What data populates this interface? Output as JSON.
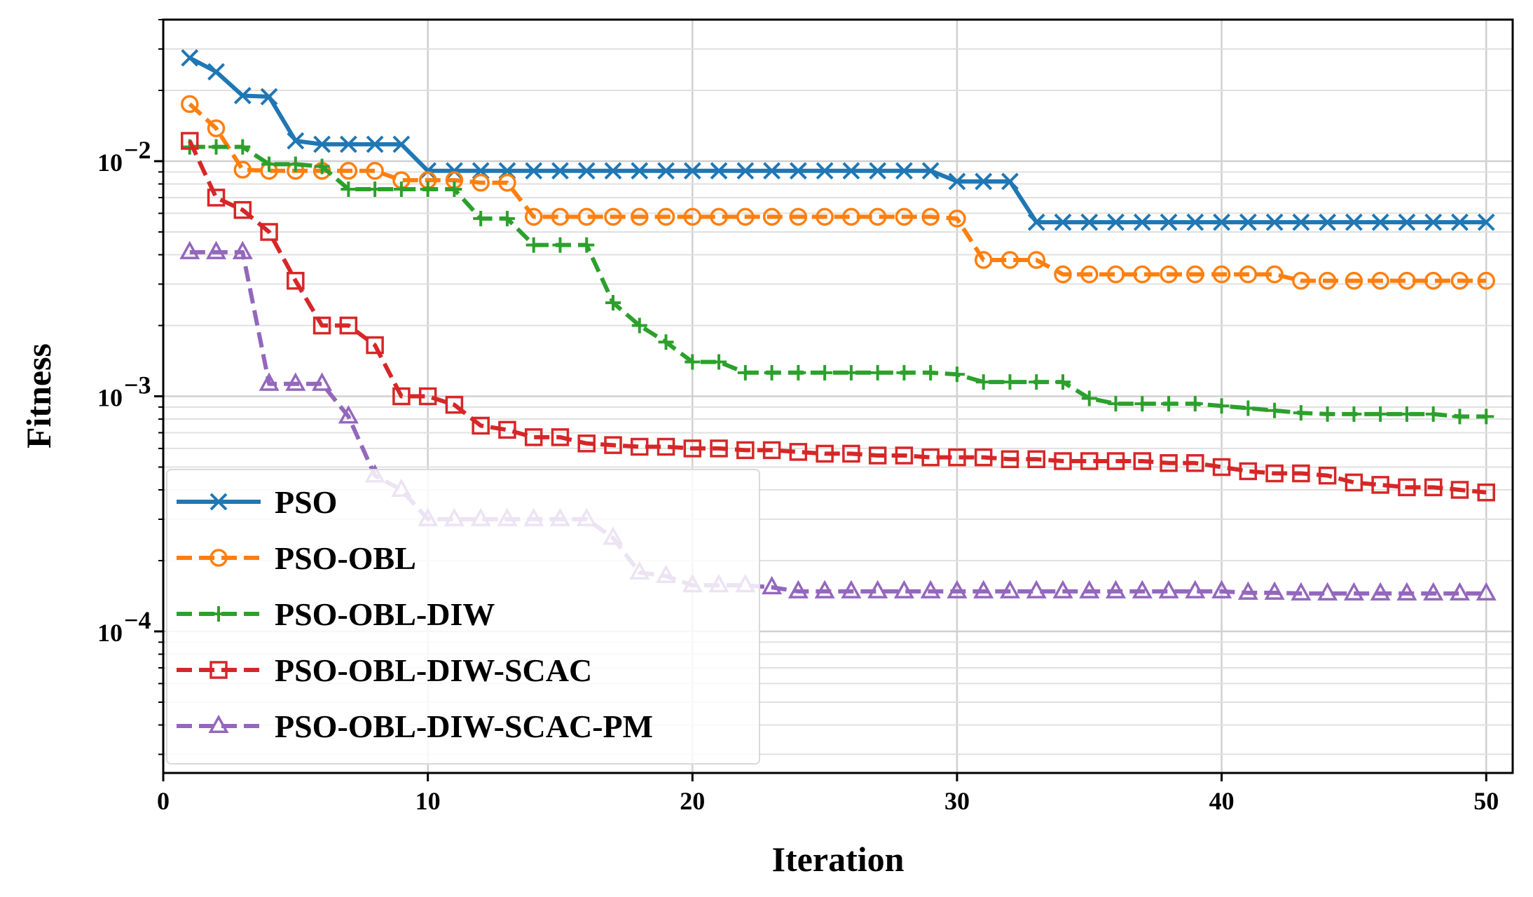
{
  "chart_data": {
    "type": "line",
    "xlabel": "Iteration",
    "ylabel": "Fitness",
    "xlim": [
      0,
      51
    ],
    "ylim": [
      2.5e-05,
      0.04
    ],
    "yscale": "log",
    "xticks": [
      0,
      10,
      20,
      30,
      40,
      50
    ],
    "yticks": [
      {
        "value": 0.01,
        "base": "10",
        "exp": "−2"
      },
      {
        "value": 0.001,
        "base": "10",
        "exp": "−3"
      },
      {
        "value": 0.0001,
        "base": "10",
        "exp": "−4"
      }
    ],
    "grid": true,
    "legend_position": "bottom-left",
    "x": [
      1,
      2,
      3,
      4,
      5,
      6,
      7,
      8,
      9,
      10,
      11,
      12,
      13,
      14,
      15,
      16,
      17,
      18,
      19,
      20,
      21,
      22,
      23,
      24,
      25,
      26,
      27,
      28,
      29,
      30,
      31,
      32,
      33,
      34,
      35,
      36,
      37,
      38,
      39,
      40,
      41,
      42,
      43,
      44,
      45,
      46,
      47,
      48,
      49,
      50
    ],
    "series": [
      {
        "name": "PSO",
        "color": "#1f77b4",
        "marker": "x",
        "dash": "solid",
        "values": [
          0.0275,
          0.024,
          0.019,
          0.0188,
          0.0122,
          0.0118,
          0.0118,
          0.0118,
          0.0118,
          0.0091,
          0.0091,
          0.0091,
          0.0091,
          0.0091,
          0.0091,
          0.0091,
          0.0091,
          0.0091,
          0.0091,
          0.0091,
          0.0091,
          0.0091,
          0.0091,
          0.0091,
          0.0091,
          0.0091,
          0.0091,
          0.0091,
          0.0091,
          0.0082,
          0.0082,
          0.0082,
          0.0055,
          0.0055,
          0.0055,
          0.0055,
          0.0055,
          0.0055,
          0.0055,
          0.0055,
          0.0055,
          0.0055,
          0.0055,
          0.0055,
          0.0055,
          0.0055,
          0.0055,
          0.0055,
          0.0055,
          0.0055
        ]
      },
      {
        "name": "PSO-OBL",
        "color": "#ff7f0e",
        "marker": "o",
        "dash": "dashed",
        "values": [
          0.0175,
          0.0138,
          0.0092,
          0.0091,
          0.0091,
          0.0091,
          0.0091,
          0.0091,
          0.0083,
          0.0083,
          0.0083,
          0.0081,
          0.0081,
          0.0058,
          0.0058,
          0.0058,
          0.0058,
          0.0058,
          0.0058,
          0.0058,
          0.0058,
          0.0058,
          0.0058,
          0.0058,
          0.0058,
          0.0058,
          0.0058,
          0.0058,
          0.0058,
          0.0057,
          0.0038,
          0.0038,
          0.0038,
          0.0033,
          0.0033,
          0.0033,
          0.0033,
          0.0033,
          0.0033,
          0.0033,
          0.0033,
          0.0033,
          0.0031,
          0.0031,
          0.0031,
          0.0031,
          0.0031,
          0.0031,
          0.0031,
          0.0031
        ]
      },
      {
        "name": "PSO-OBL-DIW",
        "color": "#2ca02c",
        "marker": "+",
        "dash": "dashed",
        "values": [
          0.0115,
          0.0115,
          0.0115,
          0.0097,
          0.0097,
          0.0095,
          0.0076,
          0.0076,
          0.0076,
          0.0076,
          0.0076,
          0.0057,
          0.0057,
          0.0044,
          0.0044,
          0.0044,
          0.0025,
          0.002,
          0.0017,
          0.0014,
          0.0014,
          0.00126,
          0.00126,
          0.00126,
          0.00126,
          0.00126,
          0.00126,
          0.00126,
          0.00126,
          0.00124,
          0.00115,
          0.00115,
          0.00115,
          0.00115,
          0.00098,
          0.00093,
          0.00093,
          0.00093,
          0.00093,
          0.00091,
          0.00089,
          0.00087,
          0.00085,
          0.00084,
          0.00084,
          0.00084,
          0.00084,
          0.00084,
          0.00082,
          0.00082
        ]
      },
      {
        "name": "PSO-OBL-DIW-SCAC",
        "color": "#d62728",
        "marker": "s",
        "dash": "dashed",
        "values": [
          0.0122,
          0.007,
          0.0062,
          0.005,
          0.0031,
          0.002,
          0.002,
          0.00165,
          0.001,
          0.001,
          0.00092,
          0.00075,
          0.00072,
          0.00067,
          0.00067,
          0.00063,
          0.00062,
          0.00061,
          0.00061,
          0.0006,
          0.0006,
          0.00059,
          0.00059,
          0.00058,
          0.00057,
          0.00057,
          0.00056,
          0.00056,
          0.00055,
          0.00055,
          0.00055,
          0.00054,
          0.00054,
          0.00053,
          0.00053,
          0.00053,
          0.00053,
          0.00052,
          0.00052,
          0.0005,
          0.00048,
          0.00047,
          0.00047,
          0.00046,
          0.00043,
          0.00042,
          0.00041,
          0.00041,
          0.0004,
          0.00039
        ]
      },
      {
        "name": "PSO-OBL-DIW-SCAC-PM",
        "color": "#9467bd",
        "marker": "^",
        "dash": "dashed",
        "values": [
          0.0041,
          0.0041,
          0.0041,
          0.00113,
          0.00113,
          0.00113,
          0.00082,
          0.00046,
          0.0004,
          0.0003,
          0.0003,
          0.0003,
          0.0003,
          0.0003,
          0.0003,
          0.0003,
          0.00025,
          0.000178,
          0.000172,
          0.000157,
          0.000157,
          0.000157,
          0.000154,
          0.000148,
          0.000148,
          0.000148,
          0.000148,
          0.000148,
          0.000148,
          0.000148,
          0.000148,
          0.000148,
          0.000148,
          0.000148,
          0.000148,
          0.000148,
          0.000148,
          0.000148,
          0.000148,
          0.000148,
          0.000146,
          0.000146,
          0.000145,
          0.000145,
          0.000145,
          0.000145,
          0.000145,
          0.000145,
          0.000145,
          0.000145
        ]
      }
    ]
  }
}
